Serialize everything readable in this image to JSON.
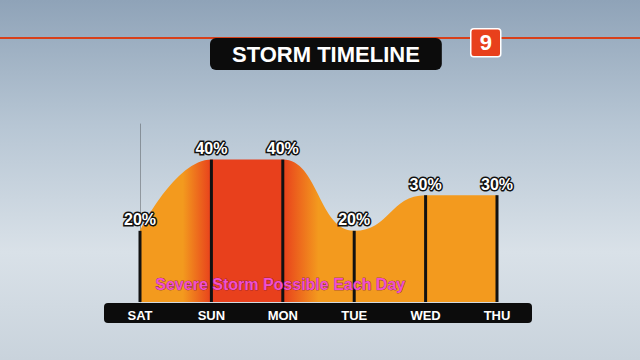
{
  "chart_data": {
    "type": "area",
    "title": "STORM TIMELINE",
    "logo": "9",
    "annotation": "Severe Storm Possible Each Day",
    "categories": [
      "SAT",
      "SUN",
      "MON",
      "TUE",
      "WED",
      "THU"
    ],
    "values": [
      20,
      40,
      40,
      20,
      30,
      30
    ],
    "value_labels": [
      "20%",
      "40%",
      "40%",
      "20%",
      "30%",
      "30%"
    ],
    "color": "#f39a1e",
    "ylim": [
      0,
      50
    ],
    "data_labels": true,
    "tick_labels": "x"
  }
}
